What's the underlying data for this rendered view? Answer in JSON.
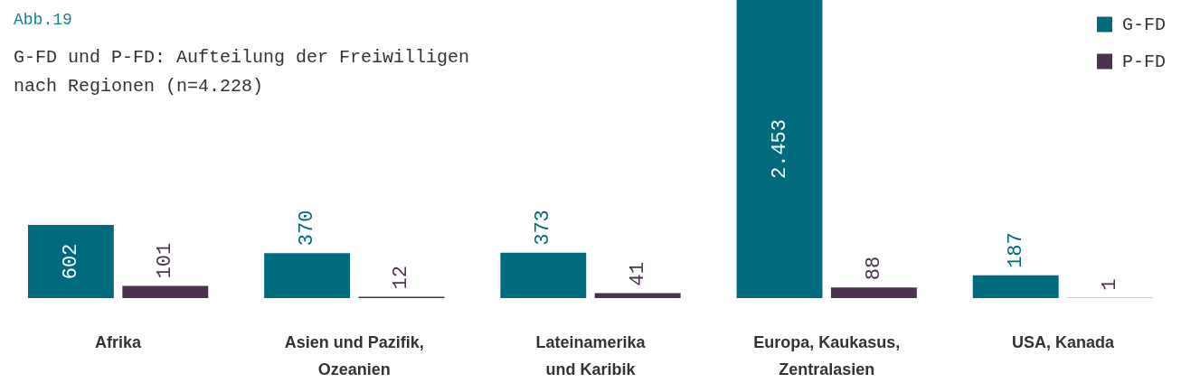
{
  "chart_data": {
    "type": "bar",
    "title": "Abb.19",
    "subtitle": "G-FD und P-FD: Aufteilung der Freiwilligen\nnach Regionen (n=4.228)",
    "categories": [
      "Afrika",
      "Asien und Pazifik,\nOzeanien",
      "Lateinamerika\nund Karibik",
      "Europa, Kaukasus,\nZentralasien",
      "USA, Kanada"
    ],
    "series": [
      {
        "name": "G-FD",
        "color": "#006b7d",
        "values": [
          602,
          370,
          373,
          2453,
          187
        ],
        "value_labels": [
          "602",
          "370",
          "373",
          "2.453",
          "187"
        ]
      },
      {
        "name": "P-FD",
        "color": "#4b324e",
        "values": [
          101,
          12,
          41,
          88,
          1
        ],
        "value_labels": [
          "101",
          "12",
          "41",
          "88",
          "1"
        ]
      }
    ],
    "legend": "top right",
    "tick_labels": "x"
  }
}
